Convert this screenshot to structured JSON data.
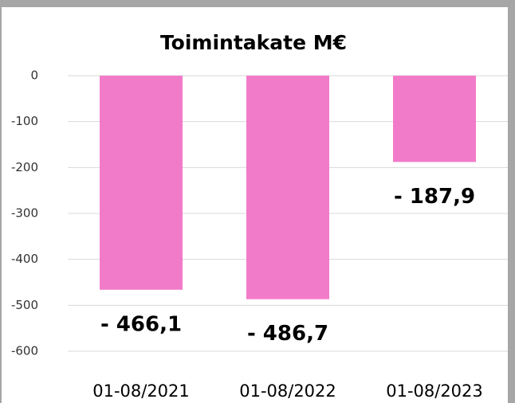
{
  "chart_data": {
    "type": "bar",
    "title": "Toimintakate M€",
    "categories": [
      "01-08/2021",
      "01-08/2022",
      "01-08/2023"
    ],
    "values": [
      -466.1,
      -486.7,
      -187.9
    ],
    "value_labels": [
      "- 466,1",
      "- 486,7",
      "- 187,9"
    ],
    "color": "#f27bc9",
    "ylim": [
      -600,
      0
    ],
    "yticks": [
      0,
      -100,
      -200,
      -300,
      -400,
      -500,
      -600
    ],
    "grid": true
  }
}
